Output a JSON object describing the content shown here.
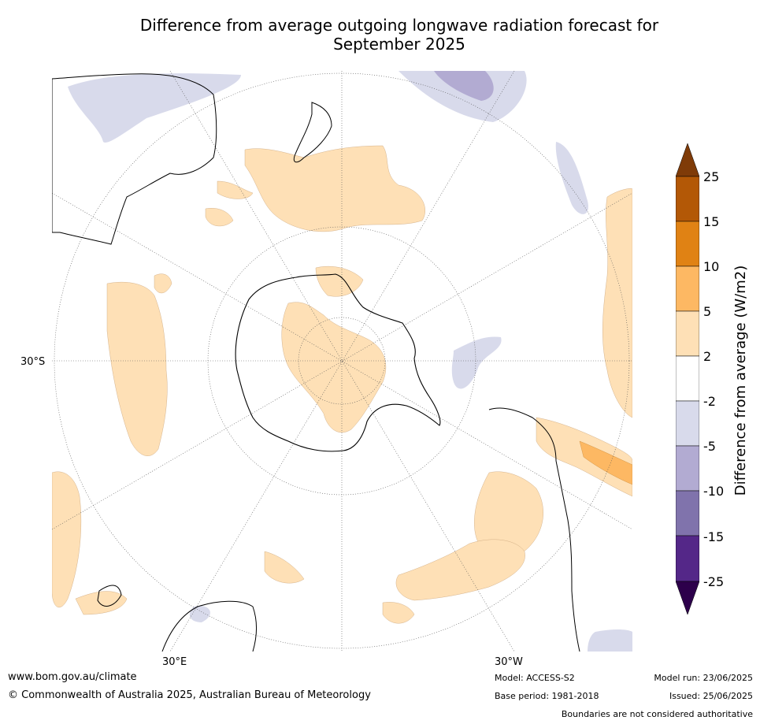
{
  "title_line1": "Difference from average outgoing longwave radiation forecast for",
  "title_line2": "September 2025",
  "map_labels": {
    "lat_30s": "30°S",
    "lon_30e": "30°E",
    "lon_30w": "30°W"
  },
  "colorbar": {
    "label": "Difference from average (W/m2)",
    "ticks": [
      "25",
      "15",
      "10",
      "5",
      "2",
      "-2",
      "-5",
      "-10",
      "-15",
      "-25"
    ],
    "colors": [
      "#7f3b08",
      "#b35806",
      "#e08214",
      "#fdb863",
      "#fee0b6",
      "#ffffff",
      "#d8daeb",
      "#b2abd2",
      "#8073ac",
      "#542788",
      "#2d004b"
    ]
  },
  "footer": {
    "url": "www.bom.gov.au/climate",
    "copyright": "© Commonwealth of Australia 2025, Australian Bureau of Meteorology",
    "model": "Model: ACCESS-S2",
    "base_period": "Base period: 1981-2018",
    "model_run": "Model run: 23/06/2025",
    "issued": "Issued: 25/06/2025",
    "disclaimer": "Boundaries are not considered authoritative"
  }
}
